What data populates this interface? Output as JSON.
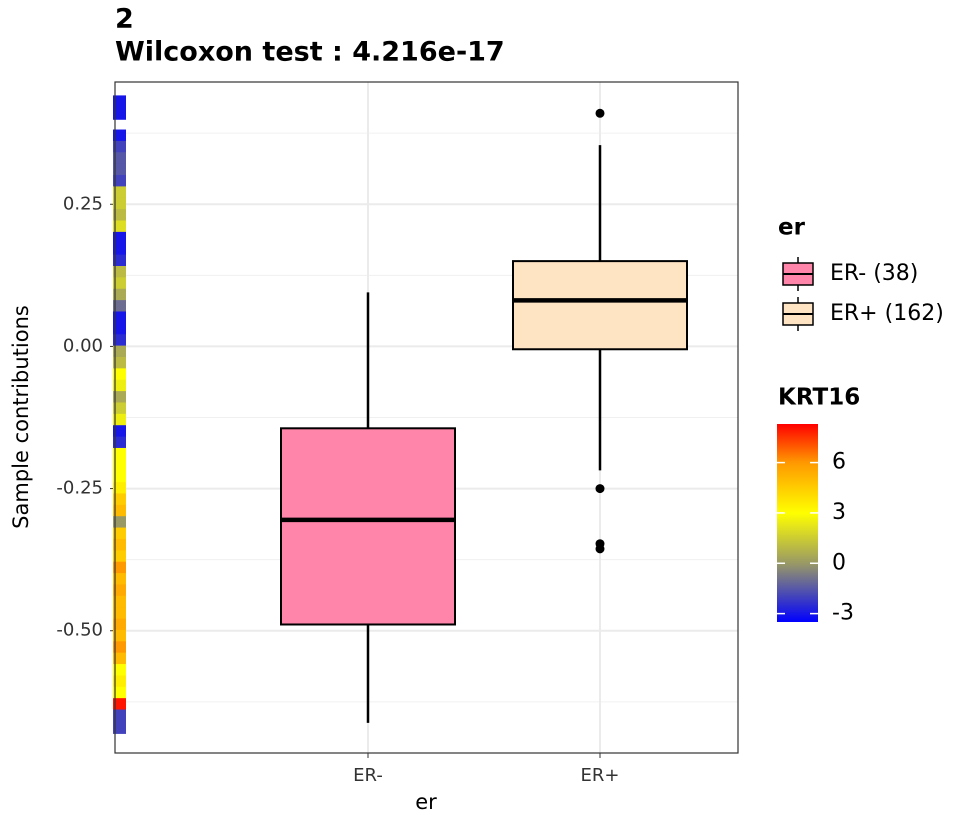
{
  "chart_data": {
    "type": "boxplot",
    "title": "2",
    "subtitle": "Wilcoxon test : 4.216e-17",
    "x_label": "er",
    "y_label": "Sample contributions",
    "categories": [
      "ER-",
      "ER+"
    ],
    "series": [
      {
        "name": "ER- (38)",
        "color": "#ff85aa",
        "q1": -0.489,
        "median": -0.305,
        "q3": -0.144,
        "whislo": -0.662,
        "whishi": 0.095,
        "outliers": []
      },
      {
        "name": "ER+ (162)",
        "color": "#ffe4c4",
        "q1": -0.005,
        "median": 0.081,
        "q3": 0.15,
        "whislo": -0.218,
        "whishi": 0.354,
        "outliers": [
          0.41,
          -0.25,
          -0.347,
          -0.356
        ]
      }
    ],
    "ylim": [
      -0.715,
      0.465
    ],
    "yticks": [
      {
        "value": 0.25,
        "label": "0.25"
      },
      {
        "value": 0,
        "label": "0.00"
      },
      {
        "value": -0.25,
        "label": "-0.25"
      },
      {
        "value": -0.5,
        "label": "-0.50"
      }
    ],
    "yminorticks": [
      0.375,
      0.125,
      -0.125,
      -0.375,
      -0.625
    ],
    "grid": true,
    "legend_title": "er",
    "legend_position": "right",
    "colorbar": {
      "title": "KRT16",
      "lim": [
        -3.5,
        8.3
      ],
      "ticks": [
        6,
        3,
        0,
        -3
      ],
      "stops": [
        {
          "value": -3.5,
          "color": "#0000ff"
        },
        {
          "value": 0,
          "color": "#999966"
        },
        {
          "value": 3,
          "color": "#ffff00"
        },
        {
          "value": 6,
          "color": "#ff9900"
        },
        {
          "value": 8.3,
          "color": "#ff0000"
        }
      ]
    },
    "rug": [
      {
        "y": 0.43,
        "krt16": -3
      },
      {
        "y": 0.41,
        "krt16": -3
      },
      {
        "y": 0.37,
        "krt16": -3
      },
      {
        "y": 0.35,
        "krt16": -2
      },
      {
        "y": 0.33,
        "krt16": -1.5
      },
      {
        "y": 0.31,
        "krt16": -1.5
      },
      {
        "y": 0.29,
        "krt16": -2
      },
      {
        "y": 0.27,
        "krt16": 1.5
      },
      {
        "y": 0.25,
        "krt16": 1.5
      },
      {
        "y": 0.23,
        "krt16": 1
      },
      {
        "y": 0.21,
        "krt16": 2
      },
      {
        "y": 0.19,
        "krt16": -3
      },
      {
        "y": 0.17,
        "krt16": -3
      },
      {
        "y": 0.15,
        "krt16": -2.5
      },
      {
        "y": 0.13,
        "krt16": 1
      },
      {
        "y": 0.11,
        "krt16": 1.5
      },
      {
        "y": 0.09,
        "krt16": 0.5
      },
      {
        "y": 0.07,
        "krt16": -1
      },
      {
        "y": 0.05,
        "krt16": -3
      },
      {
        "y": 0.03,
        "krt16": -3
      },
      {
        "y": 0.01,
        "krt16": -2.5
      },
      {
        "y": -0.01,
        "krt16": 0.5
      },
      {
        "y": -0.03,
        "krt16": 1
      },
      {
        "y": -0.05,
        "krt16": 3
      },
      {
        "y": -0.07,
        "krt16": 2.5
      },
      {
        "y": -0.09,
        "krt16": 0.5
      },
      {
        "y": -0.11,
        "krt16": 1.5
      },
      {
        "y": -0.13,
        "krt16": 2.5
      },
      {
        "y": -0.15,
        "krt16": -3
      },
      {
        "y": -0.17,
        "krt16": -2.5
      },
      {
        "y": -0.19,
        "krt16": 3
      },
      {
        "y": -0.21,
        "krt16": 3
      },
      {
        "y": -0.23,
        "krt16": 3
      },
      {
        "y": -0.25,
        "krt16": 3.5
      },
      {
        "y": -0.27,
        "krt16": 4.5
      },
      {
        "y": -0.29,
        "krt16": 5
      },
      {
        "y": -0.31,
        "krt16": 0
      },
      {
        "y": -0.33,
        "krt16": 4.5
      },
      {
        "y": -0.35,
        "krt16": 5
      },
      {
        "y": -0.37,
        "krt16": 4.5
      },
      {
        "y": -0.39,
        "krt16": 6
      },
      {
        "y": -0.41,
        "krt16": 5
      },
      {
        "y": -0.43,
        "krt16": 5.5
      },
      {
        "y": -0.45,
        "krt16": 5
      },
      {
        "y": -0.47,
        "krt16": 5
      },
      {
        "y": -0.49,
        "krt16": 5.5
      },
      {
        "y": -0.51,
        "krt16": 5
      },
      {
        "y": -0.53,
        "krt16": 6
      },
      {
        "y": -0.55,
        "krt16": 5
      },
      {
        "y": -0.57,
        "krt16": 3
      },
      {
        "y": -0.59,
        "krt16": 3.5
      },
      {
        "y": -0.61,
        "krt16": 3
      },
      {
        "y": -0.63,
        "krt16": 8
      },
      {
        "y": -0.65,
        "krt16": -2
      },
      {
        "y": -0.67,
        "krt16": -2
      }
    ]
  }
}
